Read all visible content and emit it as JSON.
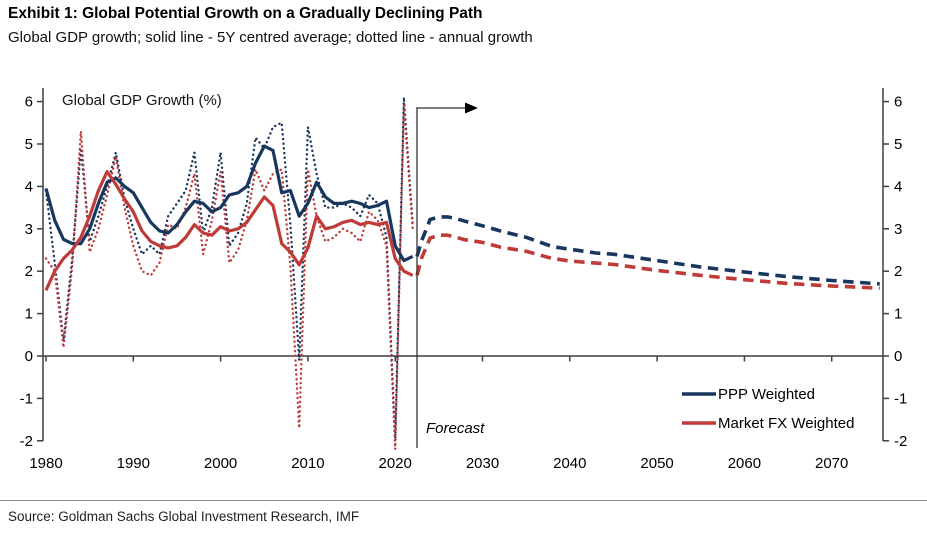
{
  "header": {
    "title": "Exhibit 1: Global Potential Growth on a Gradually Declining Path",
    "subtitle": "Global GDP growth; solid line - 5Y centred average; dotted line - annual growth"
  },
  "footer": {
    "source": "Source: Goldman Sachs Global Investment Research, IMF"
  },
  "colors": {
    "ppp": "#17375e",
    "market_fx": "#be3b38",
    "axis": "#3f3f3f",
    "arrow": "#000000"
  },
  "chart_data": {
    "type": "line",
    "title": "Exhibit 1: Global Potential Growth on a Gradually Declining Path",
    "subtitle": "Global GDP growth; solid line - 5Y centred average; dotted line - annual growth",
    "inner_label": "Global GDP Growth (%)",
    "forecast_label": "Forecast",
    "forecast_start": 2022.5,
    "ylim": [
      -2,
      6
    ],
    "y_ticks": [
      6,
      5,
      4,
      3,
      2,
      1,
      0,
      -1,
      -2
    ],
    "x_ticks": [
      1980,
      1990,
      2000,
      2010,
      2020,
      2030,
      2040,
      2050,
      2060,
      2070
    ],
    "grid": false,
    "legend_position": "lower right",
    "legend": [
      {
        "label": "PPP Weighted",
        "color": "#17375e"
      },
      {
        "label": "Market FX Weighted",
        "color": "#be3b38"
      }
    ],
    "years_hist": [
      1980,
      1981,
      1982,
      1983,
      1984,
      1985,
      1986,
      1987,
      1988,
      1989,
      1990,
      1991,
      1992,
      1993,
      1994,
      1995,
      1996,
      1997,
      1998,
      1999,
      2000,
      2001,
      2002,
      2003,
      2004,
      2005,
      2006,
      2007,
      2008,
      2009,
      2010,
      2011,
      2012,
      2013,
      2014,
      2015,
      2016,
      2017,
      2018,
      2019,
      2020,
      2021,
      2022
    ],
    "years_forecast": [
      2022.5,
      2023,
      2024,
      2025,
      2026,
      2027,
      2028,
      2030,
      2032,
      2035,
      2038,
      2040,
      2043,
      2045,
      2050,
      2055,
      2060,
      2065,
      2070,
      2075.5
    ],
    "series": [
      {
        "name": "PPP Weighted - annual growth",
        "style": "dotted",
        "color": "#17375e",
        "x_ref": "years_hist",
        "values": [
          3.9,
          2.2,
          0.35,
          2.3,
          4.9,
          2.7,
          3.3,
          4.0,
          4.8,
          3.7,
          3.0,
          2.4,
          2.6,
          2.4,
          3.3,
          3.6,
          3.9,
          4.8,
          2.9,
          3.5,
          4.8,
          2.6,
          2.9,
          3.6,
          5.15,
          4.9,
          5.4,
          5.5,
          3.1,
          -0.1,
          5.4,
          4.3,
          3.5,
          3.5,
          3.6,
          3.5,
          3.3,
          3.8,
          3.6,
          2.8,
          -2.0,
          6.1,
          3.1
        ]
      },
      {
        "name": "Market FX Weighted - annual growth",
        "style": "dotted",
        "color": "#be3b38",
        "x_ref": "years_hist",
        "values": [
          2.3,
          2.0,
          0.2,
          2.1,
          5.3,
          2.45,
          3.0,
          3.8,
          4.7,
          3.5,
          2.6,
          2.0,
          1.9,
          2.2,
          3.1,
          3.0,
          3.5,
          4.3,
          2.4,
          3.2,
          4.35,
          2.2,
          2.5,
          3.2,
          4.4,
          3.9,
          4.3,
          4.4,
          2.1,
          -1.7,
          4.4,
          3.3,
          2.7,
          2.8,
          3.0,
          2.9,
          2.7,
          3.4,
          3.2,
          2.6,
          -2.2,
          5.9,
          3.0
        ]
      },
      {
        "name": "PPP Weighted - 5Y centred average",
        "style": "solid",
        "color": "#17375e",
        "x_ref": "years_hist",
        "values": [
          3.95,
          3.2,
          2.75,
          2.65,
          2.65,
          3.0,
          3.6,
          4.1,
          4.2,
          4.0,
          3.85,
          3.5,
          3.15,
          2.95,
          2.9,
          3.1,
          3.4,
          3.65,
          3.6,
          3.4,
          3.5,
          3.8,
          3.85,
          4.0,
          4.55,
          4.95,
          4.85,
          3.85,
          3.9,
          3.3,
          3.6,
          4.1,
          3.75,
          3.6,
          3.6,
          3.65,
          3.6,
          3.5,
          3.55,
          3.65,
          2.6,
          2.25,
          2.35
        ]
      },
      {
        "name": "Market FX Weighted - 5Y centred average",
        "style": "solid",
        "color": "#be3b38",
        "x_ref": "years_hist",
        "values": [
          1.55,
          2.0,
          2.3,
          2.5,
          2.8,
          3.3,
          3.9,
          4.35,
          4.05,
          3.7,
          3.4,
          2.95,
          2.7,
          2.6,
          2.55,
          2.6,
          2.8,
          3.1,
          2.9,
          2.85,
          3.05,
          2.95,
          3.0,
          3.15,
          3.45,
          3.75,
          3.55,
          2.65,
          2.45,
          2.15,
          2.55,
          3.3,
          3.0,
          3.05,
          3.15,
          3.2,
          3.1,
          3.15,
          3.1,
          3.15,
          2.3,
          2.0,
          1.9
        ]
      },
      {
        "name": "PPP Weighted - forecast",
        "style": "dashed",
        "color": "#17375e",
        "x_ref": "years_forecast",
        "values": [
          2.35,
          2.7,
          3.22,
          3.28,
          3.28,
          3.24,
          3.18,
          3.07,
          2.95,
          2.8,
          2.58,
          2.52,
          2.43,
          2.4,
          2.25,
          2.1,
          1.98,
          1.87,
          1.78,
          1.7
        ]
      },
      {
        "name": "Market FX Weighted - forecast",
        "style": "dashed",
        "color": "#be3b38",
        "x_ref": "years_forecast",
        "values": [
          1.9,
          2.3,
          2.78,
          2.85,
          2.85,
          2.8,
          2.74,
          2.68,
          2.57,
          2.47,
          2.3,
          2.24,
          2.19,
          2.16,
          2.02,
          1.9,
          1.8,
          1.71,
          1.65,
          1.6
        ]
      }
    ]
  }
}
